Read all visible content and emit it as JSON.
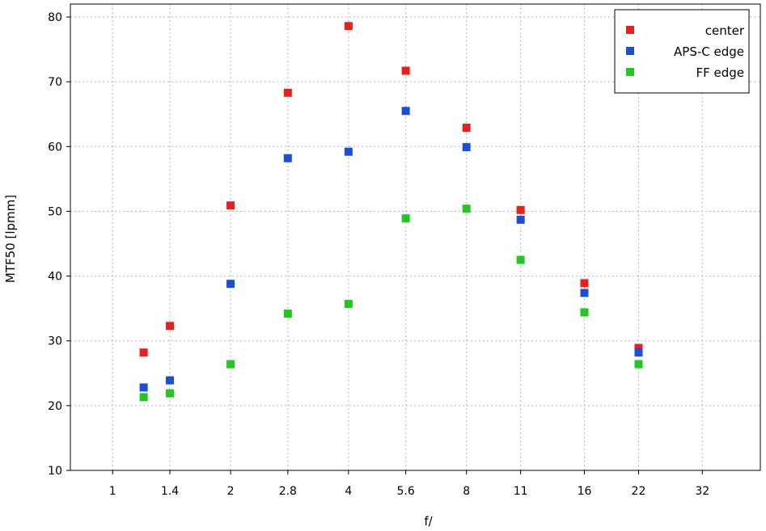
{
  "chart_data": {
    "type": "scatter",
    "title": "",
    "xlabel": "f/",
    "ylabel": "MTF50 [lpmm]",
    "x_scale": "log2",
    "x_ticks": [
      "1",
      "1.4",
      "2",
      "2.8",
      "4",
      "5.6",
      "8",
      "11",
      "16",
      "22",
      "32"
    ],
    "x_tick_values": [
      1,
      1.4,
      2,
      2.8,
      4,
      5.6,
      8,
      11,
      16,
      22,
      32
    ],
    "xlim": [
      0.78,
      45
    ],
    "y_ticks": [
      "10",
      "20",
      "30",
      "40",
      "50",
      "60",
      "70",
      "80"
    ],
    "ylim": [
      10,
      82
    ],
    "grid": true,
    "legend_position": "top-right",
    "series": [
      {
        "name": "center",
        "color": "#e8201a",
        "x": [
          1.2,
          1.4,
          2,
          2.8,
          4,
          5.6,
          8,
          11,
          16,
          22
        ],
        "y": [
          28.2,
          32.3,
          50.9,
          68.3,
          78.6,
          71.7,
          62.9,
          50.2,
          38.9,
          28.9
        ]
      },
      {
        "name": "APS-C edge",
        "color": "#1a4fd6",
        "x": [
          1.2,
          1.4,
          2,
          2.8,
          4,
          5.6,
          8,
          11,
          16,
          22
        ],
        "y": [
          22.8,
          23.9,
          38.8,
          58.2,
          59.2,
          65.5,
          59.9,
          48.7,
          37.4,
          28.2
        ]
      },
      {
        "name": "FF edge",
        "color": "#22c722",
        "x": [
          1.2,
          1.4,
          2,
          2.8,
          4,
          5.6,
          8,
          11,
          16,
          22
        ],
        "y": [
          21.3,
          21.9,
          26.4,
          34.2,
          35.7,
          48.9,
          50.4,
          42.5,
          34.4,
          26.4
        ]
      }
    ]
  }
}
